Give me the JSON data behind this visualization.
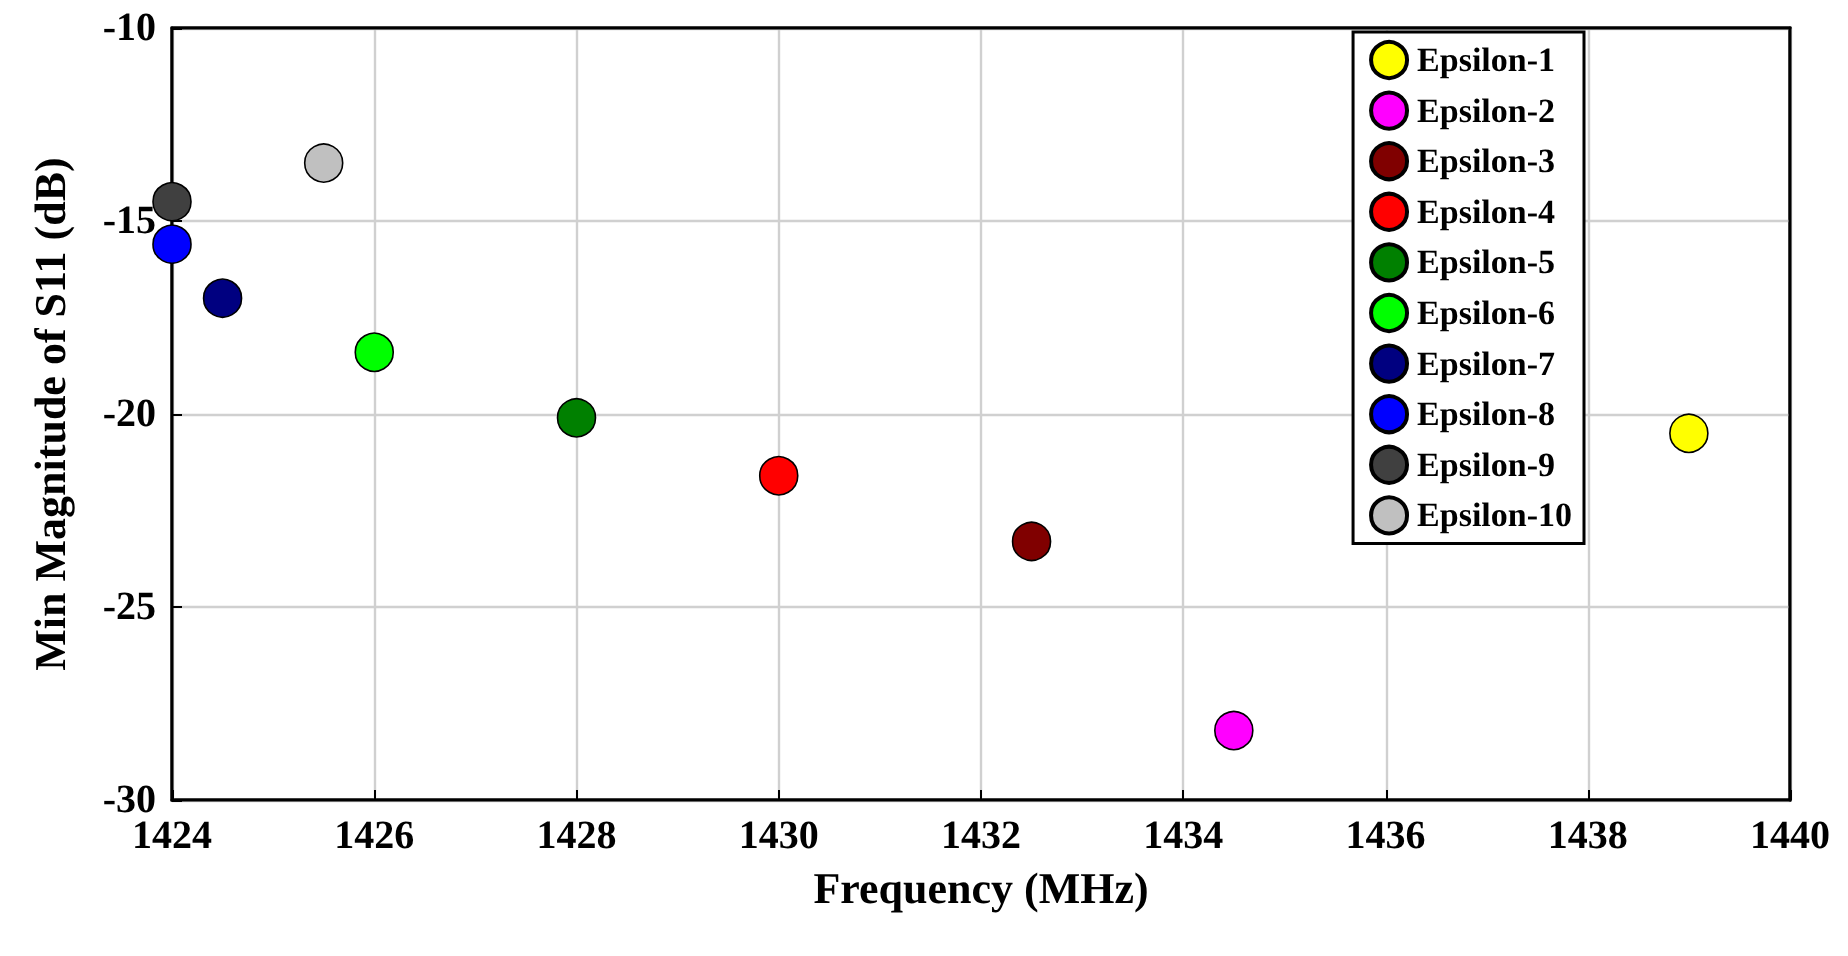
{
  "chart_data": {
    "type": "scatter",
    "xlabel": "Frequency (MHz)",
    "ylabel": "Min Magnitude of S11 (dB)",
    "xlim": [
      1424,
      1440
    ],
    "xticks": [
      1424,
      1426,
      1428,
      1430,
      1432,
      1434,
      1436,
      1438,
      1440
    ],
    "ylim": [
      -30,
      -10
    ],
    "yticks": [
      -30,
      -25,
      -20,
      -15,
      -10
    ],
    "grid": true,
    "legend": "top right",
    "marker": "circle",
    "series": [
      {
        "name": "Epsilon-1",
        "color": "#ffff00",
        "x": [
          1439
        ],
        "values": [
          -20.5
        ]
      },
      {
        "name": "Epsilon-2",
        "color": "#ff00ff",
        "x": [
          1434.5
        ],
        "values": [
          -28.2
        ]
      },
      {
        "name": "Epsilon-3",
        "color": "#800000",
        "x": [
          1432.5
        ],
        "values": [
          -23.3
        ]
      },
      {
        "name": "Epsilon-4",
        "color": "#ff0000",
        "x": [
          1430
        ],
        "values": [
          -21.6
        ]
      },
      {
        "name": "Epsilon-5",
        "color": "#008000",
        "x": [
          1428
        ],
        "values": [
          -20.1
        ]
      },
      {
        "name": "Epsilon-6",
        "color": "#00ff00",
        "x": [
          1426
        ],
        "values": [
          -18.4
        ]
      },
      {
        "name": "Epsilon-7",
        "color": "#000080",
        "x": [
          1424.5
        ],
        "values": [
          -17.0
        ]
      },
      {
        "name": "Epsilon-8",
        "color": "#0000ff",
        "x": [
          1424
        ],
        "values": [
          -15.6
        ]
      },
      {
        "name": "Epsilon-9",
        "color": "#404040",
        "x": [
          1424
        ],
        "values": [
          -14.5
        ]
      },
      {
        "name": "Epsilon-10",
        "color": "#c0c0c0",
        "x": [
          1425.5
        ],
        "values": [
          -13.5
        ]
      }
    ]
  }
}
